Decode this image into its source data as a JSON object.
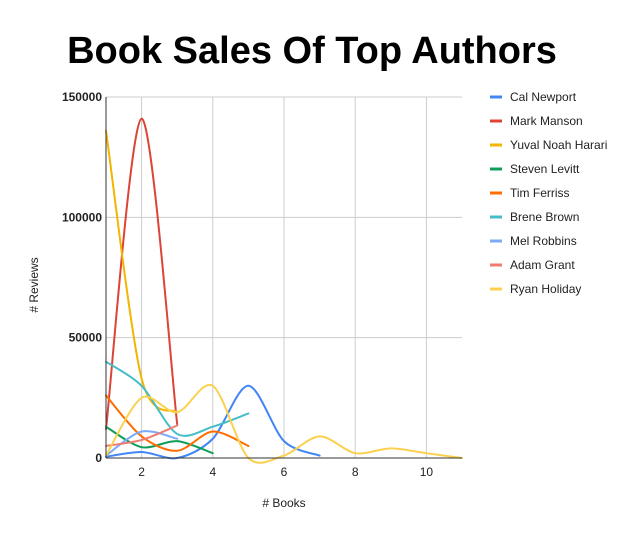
{
  "chart_data": {
    "type": "line",
    "title": "Book Sales Of Top Authors",
    "xlabel": "# Books",
    "ylabel": "# Reviews",
    "xlim": [
      1,
      11
    ],
    "ylim": [
      0,
      150000
    ],
    "x_ticks": [
      2,
      4,
      6,
      8,
      10
    ],
    "y_ticks": [
      0,
      50000,
      100000,
      150000
    ],
    "grid": true,
    "legend_position": "right",
    "series": [
      {
        "name": "Cal Newport",
        "color": "#4285f4",
        "points": [
          [
            1,
            500
          ],
          [
            2,
            2500
          ],
          [
            3,
            0
          ],
          [
            4,
            8000
          ],
          [
            5,
            30000
          ],
          [
            6,
            7000
          ],
          [
            7,
            1000
          ]
        ]
      },
      {
        "name": "Mark Manson",
        "color": "#db4437",
        "points": [
          [
            1,
            12000
          ],
          [
            2,
            141000
          ],
          [
            3,
            14000
          ]
        ]
      },
      {
        "name": "Yuval Noah Harari",
        "color": "#f4b400",
        "points": [
          [
            1,
            136000
          ],
          [
            2,
            33000
          ],
          [
            3,
            19000
          ]
        ]
      },
      {
        "name": "Steven Levitt",
        "color": "#0f9d58",
        "points": [
          [
            1,
            13000
          ],
          [
            2,
            4500
          ],
          [
            3,
            7000
          ],
          [
            4,
            2000
          ]
        ]
      },
      {
        "name": "Tim Ferriss",
        "color": "#ff6d00",
        "points": [
          [
            1,
            26000
          ],
          [
            2,
            9000
          ],
          [
            3,
            3000
          ],
          [
            4,
            11000
          ],
          [
            5,
            5000
          ]
        ]
      },
      {
        "name": "Brene Brown",
        "color": "#46bdc6",
        "points": [
          [
            1,
            40000
          ],
          [
            2,
            30000
          ],
          [
            3,
            10000
          ],
          [
            4,
            13000
          ],
          [
            5,
            18500
          ]
        ]
      },
      {
        "name": "Mel Robbins",
        "color": "#7baaf7",
        "points": [
          [
            1,
            1000
          ],
          [
            2,
            11000
          ],
          [
            3,
            8000
          ]
        ]
      },
      {
        "name": "Adam Grant",
        "color": "#f07b72",
        "points": [
          [
            1,
            5000
          ],
          [
            2,
            7500
          ],
          [
            3,
            13500
          ]
        ]
      },
      {
        "name": "Ryan Holiday",
        "color": "#fcd04f",
        "points": [
          [
            1,
            1000
          ],
          [
            2,
            25000
          ],
          [
            3,
            19000
          ],
          [
            4,
            30000
          ],
          [
            5,
            0
          ],
          [
            6,
            1000
          ],
          [
            7,
            9000
          ],
          [
            8,
            2000
          ],
          [
            9,
            4000
          ],
          [
            10,
            2000
          ],
          [
            11,
            0
          ]
        ]
      }
    ]
  }
}
